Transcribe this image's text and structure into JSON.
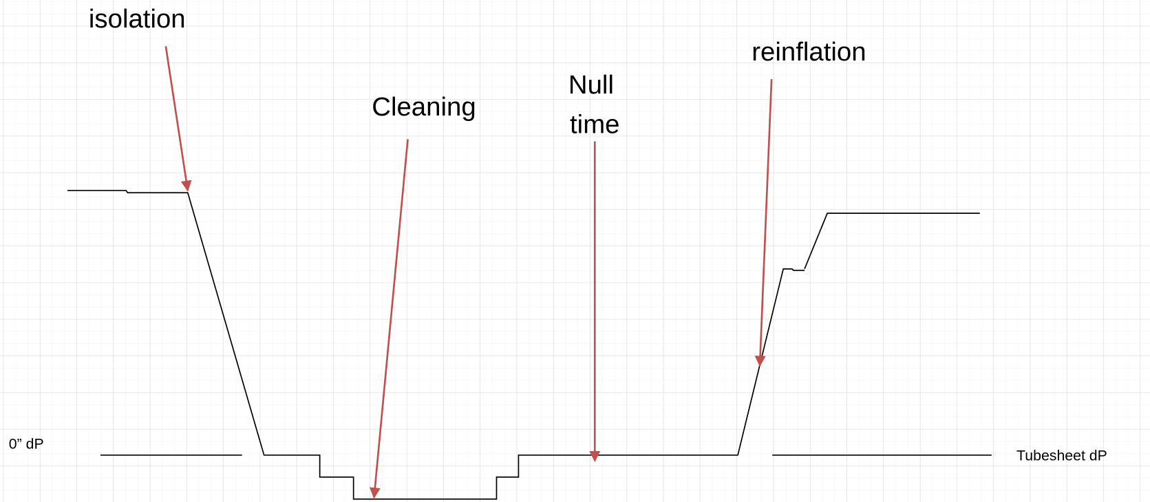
{
  "labels": {
    "isolation": "isolation",
    "cleaning": "Cleaning",
    "null_time": [
      "Null",
      "time"
    ],
    "reinflation": "reinflation",
    "zero_dp": "0” dP",
    "tubesheet_dp": "Tubesheet dP"
  }
}
